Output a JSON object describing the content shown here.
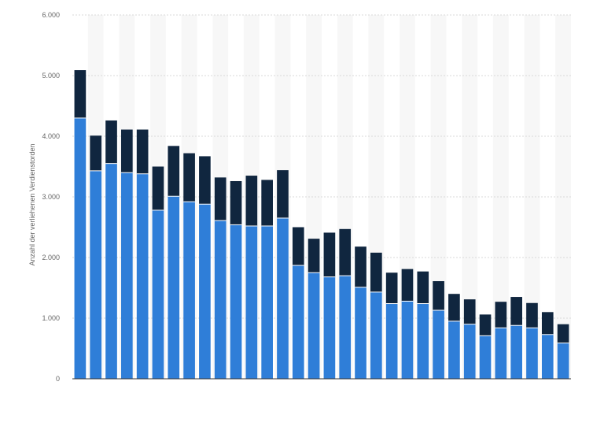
{
  "chart_data": {
    "type": "bar",
    "stacked": true,
    "title": "",
    "xlabel": "",
    "ylabel": "Anzahl der verliehenen Verdienstorden",
    "ylim": [
      0,
      6000
    ],
    "yticks": [
      0,
      1000,
      2000,
      3000,
      4000,
      5000,
      6000
    ],
    "ytick_labels": [
      "0",
      "1.000",
      "2.000",
      "3.000",
      "4.000",
      "5.000",
      "6.000"
    ],
    "grid": true,
    "legend": "none",
    "series": [
      {
        "color": "#2f7ed8",
        "values": [
          4300,
          3430,
          3550,
          3400,
          3380,
          2780,
          3010,
          2920,
          2880,
          2610,
          2540,
          2520,
          2520,
          2650,
          1870,
          1750,
          1680,
          1700,
          1510,
          1430,
          1240,
          1280,
          1240,
          1130,
          950,
          900,
          710,
          840,
          880,
          840,
          730,
          590
        ]
      },
      {
        "color": "#10263f",
        "values": [
          790,
          580,
          710,
          710,
          730,
          720,
          830,
          800,
          790,
          710,
          720,
          830,
          760,
          790,
          630,
          560,
          730,
          770,
          670,
          650,
          510,
          530,
          530,
          480,
          450,
          410,
          350,
          430,
          470,
          410,
          370,
          310
        ]
      }
    ]
  }
}
